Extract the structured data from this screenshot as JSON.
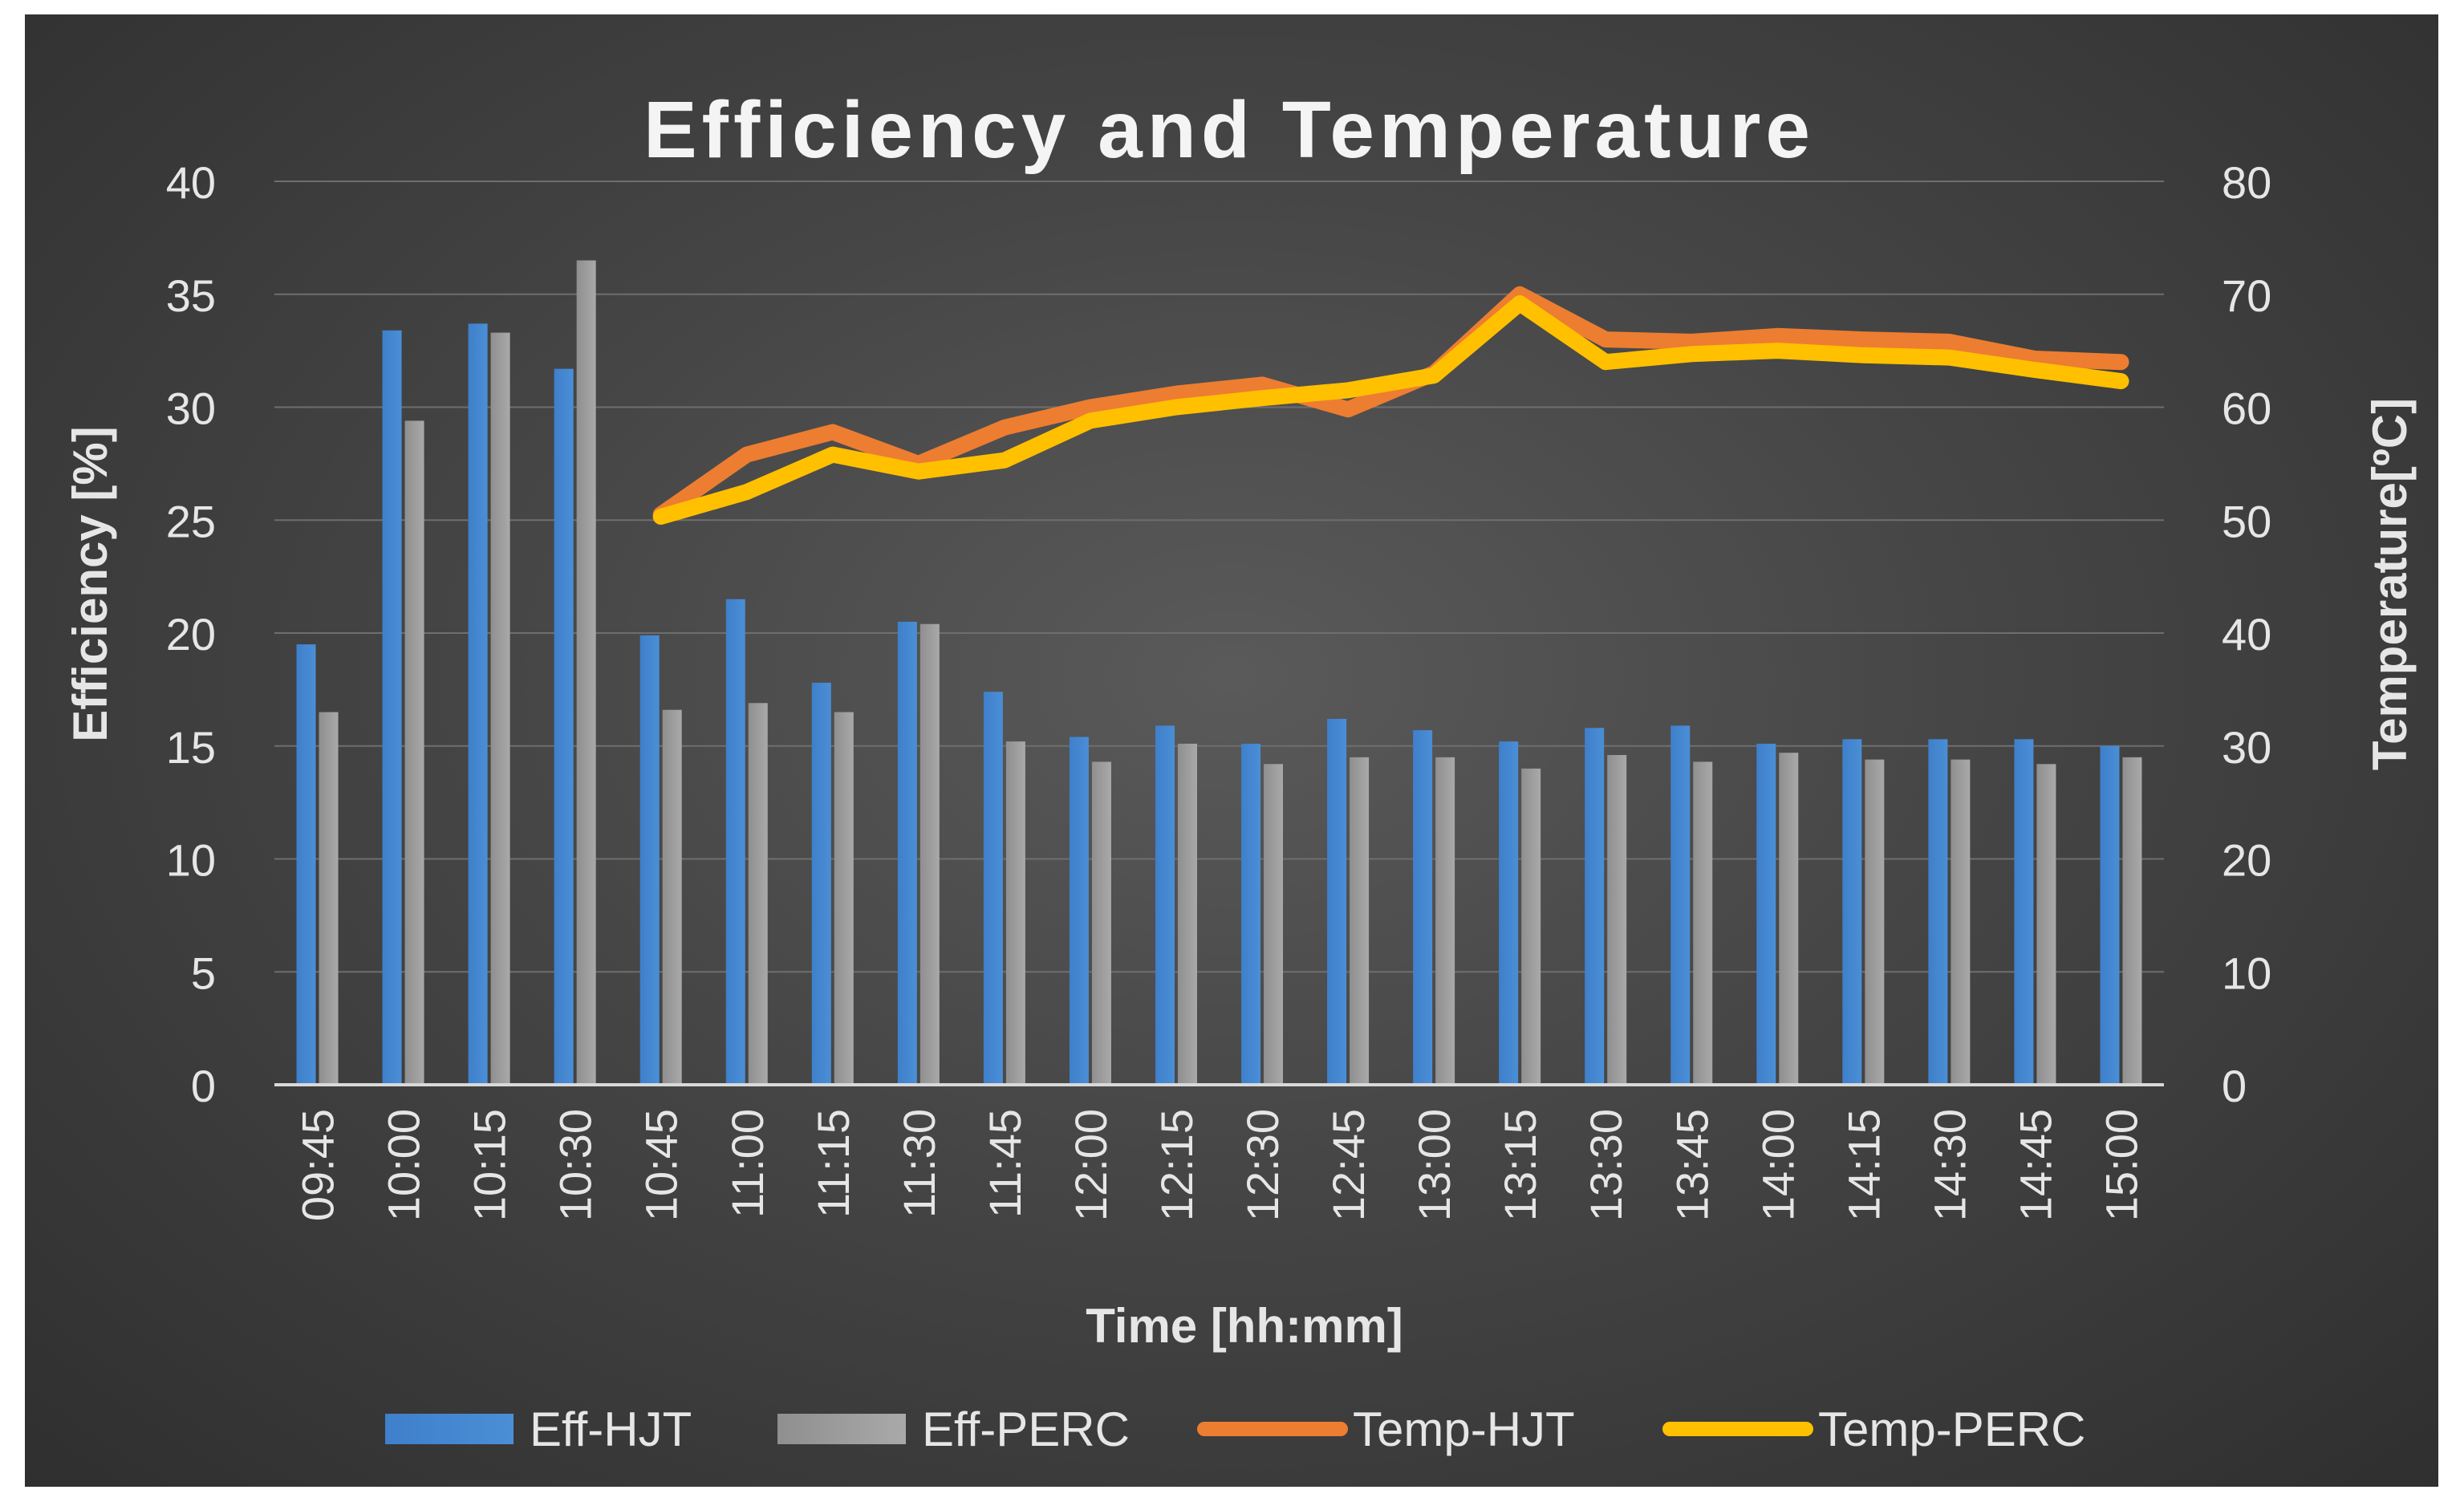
{
  "chart_data": {
    "type": "bar",
    "title": "Efficiency and Temperature",
    "xlabel": "Time [hh:mm]",
    "ylabel": "Efficiency [%]",
    "y2label": "Temperature[ºC]",
    "ylim": [
      0,
      40
    ],
    "y2lim": [
      0,
      80
    ],
    "yticks": [
      0,
      5,
      10,
      15,
      20,
      25,
      30,
      35,
      40
    ],
    "y2ticks": [
      0,
      10,
      20,
      30,
      40,
      50,
      60,
      70,
      80
    ],
    "grid": true,
    "legend_position": "bottom",
    "categories": [
      "09:45",
      "10:00",
      "10:15",
      "10:30",
      "10:45",
      "11:00",
      "11:15",
      "11:30",
      "11:45",
      "12:00",
      "12:15",
      "12:30",
      "12:45",
      "13:00",
      "13:15",
      "13:30",
      "13:45",
      "14:00",
      "14:15",
      "14:30",
      "14:45",
      "15:00"
    ],
    "series": [
      {
        "name": "Eff-HJT",
        "kind": "bar",
        "axis": "left",
        "color": "#4a8fd6",
        "values": [
          19.5,
          33.4,
          33.7,
          31.7,
          19.9,
          21.5,
          17.8,
          20.5,
          17.4,
          15.4,
          15.9,
          15.1,
          16.2,
          15.7,
          15.2,
          15.8,
          15.9,
          15.1,
          15.3,
          15.3,
          15.3,
          15.0
        ]
      },
      {
        "name": "Eff-PERC",
        "kind": "bar",
        "axis": "left",
        "color": "#a9a9a9",
        "values": [
          16.5,
          29.4,
          33.3,
          36.5,
          16.6,
          16.9,
          16.5,
          20.4,
          15.2,
          14.3,
          15.1,
          14.2,
          14.5,
          14.5,
          14.0,
          14.6,
          14.3,
          14.7,
          14.4,
          14.4,
          14.2,
          14.5
        ]
      },
      {
        "name": "Temp-HJT",
        "kind": "line",
        "axis": "right",
        "color": "#ed7d31",
        "values": [
          null,
          null,
          null,
          null,
          50.5,
          55.8,
          57.8,
          55.0,
          58.2,
          60.0,
          61.2,
          62.0,
          59.8,
          63.0,
          70.0,
          66.0,
          65.8,
          66.3,
          66.0,
          65.8,
          64.3,
          64.0
        ]
      },
      {
        "name": "Temp-PERC",
        "kind": "line",
        "axis": "right",
        "color": "#ffc000",
        "values": [
          null,
          null,
          null,
          null,
          50.3,
          52.5,
          55.8,
          54.3,
          55.3,
          58.8,
          60.0,
          60.8,
          61.5,
          62.8,
          69.2,
          64.0,
          64.7,
          65.0,
          64.6,
          64.4,
          63.3,
          62.3
        ]
      }
    ]
  }
}
